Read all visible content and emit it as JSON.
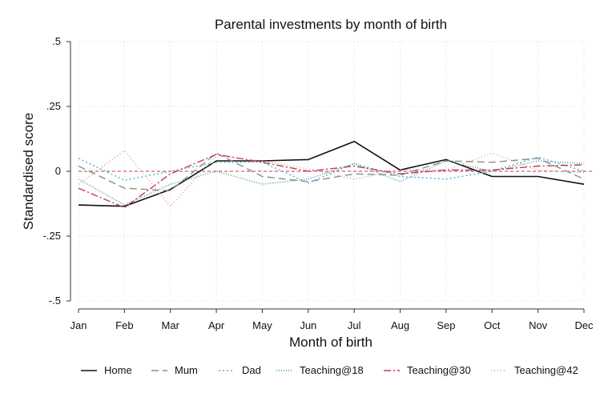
{
  "chart_data": {
    "type": "line",
    "title": "Parental investments by month of birth",
    "xlabel": "Month of birth",
    "ylabel": "Standardised score",
    "categories": [
      "Jan",
      "Feb",
      "Mar",
      "Apr",
      "May",
      "Jun",
      "Jul",
      "Aug",
      "Sep",
      "Oct",
      "Nov",
      "Dec"
    ],
    "ylim": [
      -0.5,
      0.5
    ],
    "yticks": [
      -0.5,
      -0.25,
      0,
      0.25,
      0.5
    ],
    "ytick_labels": [
      "-.5",
      "-.25",
      "0",
      ".25",
      ".5"
    ],
    "reference_line": {
      "y": 0,
      "color": "#c0395a"
    },
    "grid": true,
    "legend_position": "bottom",
    "series": [
      {
        "name": "Home",
        "color": "#111111",
        "dash": "solid",
        "values": [
          -0.13,
          -0.135,
          -0.07,
          0.04,
          0.04,
          0.045,
          0.115,
          0.005,
          0.045,
          -0.02,
          -0.02,
          -0.05
        ]
      },
      {
        "name": "Mum",
        "color": "#8c8c8c",
        "dash": "longdash",
        "values": [
          0.02,
          -0.065,
          -0.075,
          0.07,
          -0.02,
          -0.04,
          -0.01,
          -0.015,
          0.04,
          0.035,
          0.05,
          -0.03
        ]
      },
      {
        "name": "Dad",
        "color": "#55b0d8",
        "dash": "dot",
        "values": [
          0.05,
          -0.035,
          0.0,
          0.035,
          0.035,
          -0.045,
          0.03,
          -0.02,
          -0.03,
          0.0,
          0.055,
          0.0
        ]
      },
      {
        "name": "Teaching@18",
        "color": "#3f9a8a",
        "dash": "finedot",
        "values": [
          -0.03,
          -0.13,
          -0.05,
          0.0,
          -0.05,
          -0.03,
          0.03,
          -0.04,
          0.04,
          0.0,
          0.04,
          0.03
        ]
      },
      {
        "name": "Teaching@30",
        "color": "#c0395a",
        "dash": "dashdot",
        "values": [
          -0.065,
          -0.14,
          -0.01,
          0.065,
          0.035,
          0.0,
          0.02,
          -0.01,
          0.005,
          0.005,
          0.02,
          0.025
        ]
      },
      {
        "name": "Teaching@42",
        "color": "#e0956a",
        "dash": "shortdot",
        "values": [
          -0.05,
          0.08,
          -0.135,
          0.06,
          0.04,
          0.01,
          -0.03,
          0.005,
          0.005,
          0.07,
          0.005,
          -0.005
        ]
      }
    ]
  }
}
